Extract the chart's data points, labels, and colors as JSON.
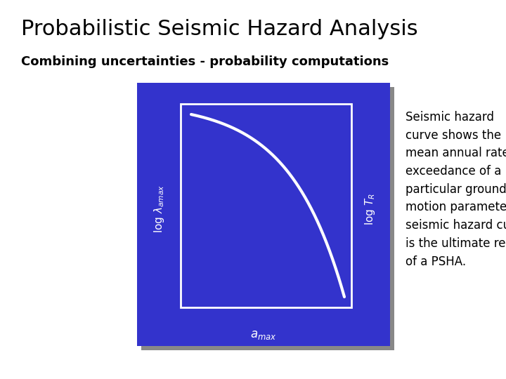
{
  "title": "Probabilistic Seismic Hazard Analysis",
  "subtitle": "Combining uncertainties - probability computations",
  "title_fontsize": 22,
  "subtitle_fontsize": 13,
  "bg_color": "#ffffff",
  "plot_bg_color": "#3333cc",
  "inner_box_color": "#ffffff",
  "curve_color": "#ffffff",
  "text_block": "Seismic hazard\ncurve shows the\nmean annual rate of\nexceedance of a\nparticular ground\nmotion parameter.  A\nseismic hazard curve\nis the ultimate result\nof a PSHA.",
  "text_fontsize": 12,
  "label_fontsize": 11,
  "shadow_color": "#888888"
}
